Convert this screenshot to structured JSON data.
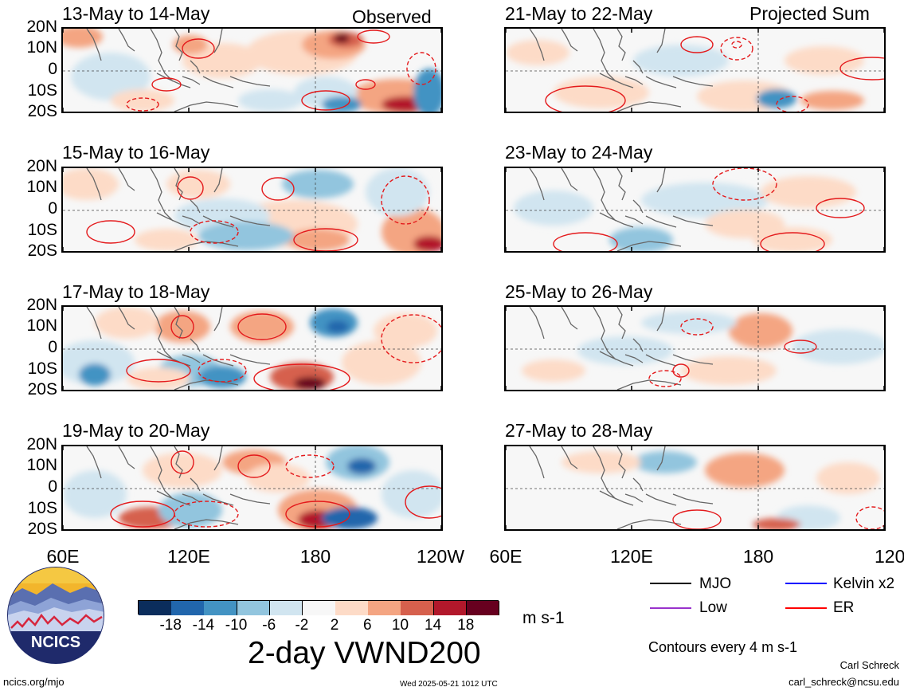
{
  "panels": {
    "left": [
      {
        "date": "13-May to 14-May",
        "tag": "Observed"
      },
      {
        "date": "15-May to 16-May",
        "tag": ""
      },
      {
        "date": "17-May to 18-May",
        "tag": ""
      },
      {
        "date": "19-May to 20-May",
        "tag": ""
      }
    ],
    "right": [
      {
        "date": "21-May to 22-May",
        "tag": "Projected Sum"
      },
      {
        "date": "23-May to 24-May",
        "tag": ""
      },
      {
        "date": "25-May to 26-May",
        "tag": ""
      },
      {
        "date": "27-May to 28-May",
        "tag": ""
      }
    ]
  },
  "lat_labels": [
    "20N",
    "10N",
    "0",
    "10S",
    "20S"
  ],
  "lon_labels": [
    "60E",
    "120E",
    "180",
    "120W"
  ],
  "colorbar": {
    "labels": [
      "-18",
      "-14",
      "-10",
      "-6",
      "-2",
      "2",
      "6",
      "10",
      "14",
      "18"
    ],
    "colors": [
      "#0b2d5c",
      "#2166ac",
      "#4393c3",
      "#92c5de",
      "#d1e5f0",
      "#f7f7f7",
      "#fddbc7",
      "#f4a582",
      "#d6604d",
      "#b2182b",
      "#67001f"
    ],
    "units": "m s-1"
  },
  "title": "2-day VWND200",
  "legend": {
    "items": [
      {
        "label": "MJO",
        "color": "#000000"
      },
      {
        "label": "Kelvin x2",
        "color": "#0000ff"
      },
      {
        "label": "Low",
        "color": "#9932cc"
      },
      {
        "label": "ER",
        "color": "#ff0000"
      }
    ],
    "contour_note": "Contours every 4 m s-1"
  },
  "logo": {
    "text": "NCICS"
  },
  "footer": {
    "url": "ncics.org/mjo",
    "timestamp": "Wed 2025-05-21 1012 UTC",
    "author": "Carl Schreck",
    "email": "carl_schreck@ncsu.edu"
  }
}
